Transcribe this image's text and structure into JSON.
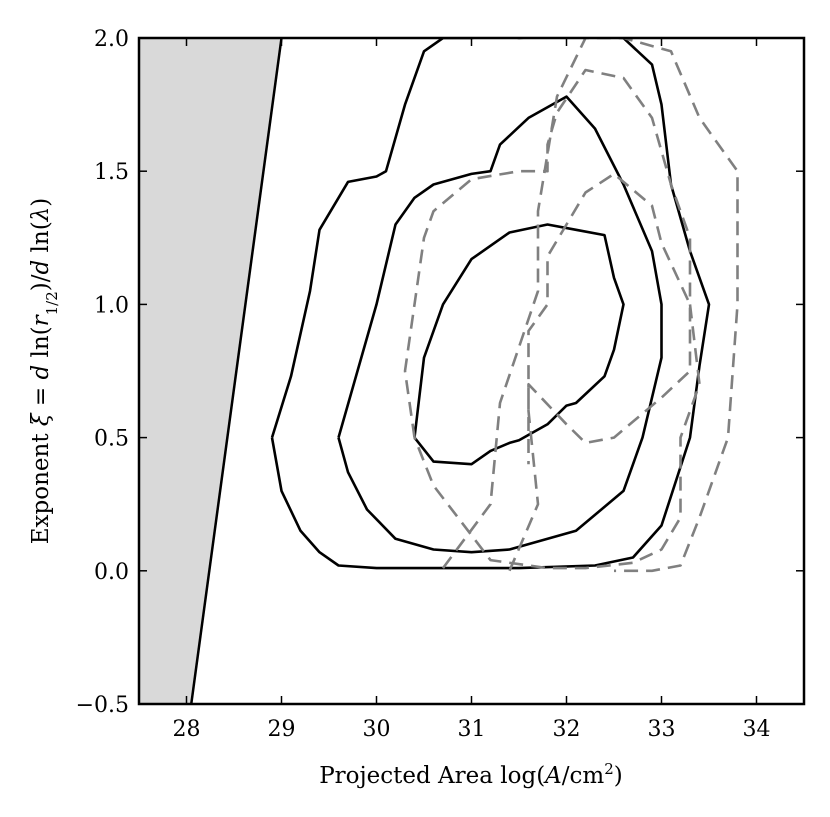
{
  "chart_data": {
    "type": "line",
    "xlabel": "Projected Area log(A/cm²)",
    "ylabel": "Exponent ξ = d ln(r_1/2)/d ln(λ)",
    "xlim": [
      27.5,
      34.5
    ],
    "ylim": [
      -0.5,
      2.0
    ],
    "xticks": [
      28,
      29,
      30,
      31,
      32,
      33,
      34
    ],
    "yticks": [
      -0.5,
      0.0,
      0.5,
      1.0,
      1.5,
      2.0
    ],
    "xtick_labels": [
      "28",
      "29",
      "30",
      "31",
      "32",
      "33",
      "34"
    ],
    "ytick_labels": [
      "−0.5",
      "0.0",
      "0.5",
      "1.0",
      "1.5",
      "2.0"
    ],
    "grid": false,
    "excluded_region": {
      "color": "#d9d9d9",
      "boundary": [
        [
          27.5,
          -0.5
        ],
        [
          28.05,
          -0.5
        ],
        [
          29.0,
          2.0
        ],
        [
          27.5,
          2.0
        ]
      ]
    },
    "series": [
      {
        "style": "solid",
        "color": "#000000",
        "points": [
          [
            30.4,
            0.5
          ],
          [
            30.5,
            0.8
          ],
          [
            30.7,
            1.0
          ],
          [
            31.0,
            1.17
          ],
          [
            31.4,
            1.27
          ],
          [
            31.8,
            1.3
          ],
          [
            32.1,
            1.28
          ],
          [
            32.4,
            1.26
          ],
          [
            32.5,
            1.1
          ],
          [
            32.6,
            1.0
          ],
          [
            32.5,
            0.83
          ],
          [
            32.4,
            0.73
          ],
          [
            32.1,
            0.63
          ],
          [
            32.0,
            0.62
          ],
          [
            31.8,
            0.55
          ],
          [
            31.5,
            0.49
          ],
          [
            31.4,
            0.48
          ],
          [
            31.2,
            0.45
          ],
          [
            31.0,
            0.4
          ],
          [
            30.6,
            0.41
          ],
          [
            30.4,
            0.5
          ]
        ]
      },
      {
        "style": "solid",
        "color": "#000000",
        "points": [
          [
            29.6,
            0.5
          ],
          [
            29.8,
            0.75
          ],
          [
            30.0,
            1.0
          ],
          [
            30.2,
            1.3
          ],
          [
            30.4,
            1.4
          ],
          [
            30.6,
            1.45
          ],
          [
            31.0,
            1.49
          ],
          [
            31.2,
            1.5
          ],
          [
            31.3,
            1.6
          ],
          [
            31.6,
            1.7
          ],
          [
            32.0,
            1.78
          ],
          [
            32.3,
            1.66
          ],
          [
            32.6,
            1.45
          ],
          [
            32.9,
            1.2
          ],
          [
            33.0,
            1.0
          ],
          [
            33.0,
            0.8
          ],
          [
            32.8,
            0.5
          ],
          [
            32.6,
            0.3
          ],
          [
            32.1,
            0.15
          ],
          [
            31.4,
            0.08
          ],
          [
            31.0,
            0.07
          ],
          [
            30.6,
            0.08
          ],
          [
            30.2,
            0.12
          ],
          [
            29.9,
            0.23
          ],
          [
            29.7,
            0.37
          ],
          [
            29.6,
            0.5
          ]
        ]
      },
      {
        "style": "solid",
        "color": "#000000",
        "points": [
          [
            28.9,
            0.5
          ],
          [
            29.1,
            0.73
          ],
          [
            29.3,
            1.05
          ],
          [
            29.4,
            1.28
          ],
          [
            29.7,
            1.46
          ],
          [
            30.0,
            1.48
          ],
          [
            30.1,
            1.5
          ],
          [
            30.3,
            1.75
          ],
          [
            30.5,
            1.95
          ],
          [
            30.7,
            2.0
          ],
          [
            31.0,
            2.0
          ],
          [
            31.3,
            2.01
          ],
          [
            31.5,
            2.0
          ],
          [
            32.0,
            2.01
          ],
          [
            32.6,
            2.0
          ],
          [
            32.9,
            1.9
          ],
          [
            33.0,
            1.75
          ],
          [
            33.1,
            1.45
          ],
          [
            33.3,
            1.2
          ],
          [
            33.5,
            1.0
          ],
          [
            33.4,
            0.77
          ],
          [
            33.3,
            0.5
          ],
          [
            33.0,
            0.17
          ],
          [
            32.7,
            0.05
          ],
          [
            32.3,
            0.02
          ],
          [
            31.5,
            0.01
          ],
          [
            30.5,
            0.01
          ],
          [
            30.0,
            0.01
          ],
          [
            29.6,
            0.02
          ],
          [
            29.4,
            0.07
          ],
          [
            29.2,
            0.15
          ],
          [
            29.0,
            0.3
          ],
          [
            28.9,
            0.5
          ]
        ]
      },
      {
        "style": "dashed",
        "color": "#808080",
        "points": [
          [
            31.4,
            0.0
          ],
          [
            31.7,
            0.25
          ],
          [
            31.6,
            0.6
          ],
          [
            31.6,
            0.9
          ],
          [
            31.8,
            1.0
          ],
          [
            31.8,
            1.18
          ],
          [
            32.0,
            1.3
          ],
          [
            32.2,
            1.42
          ],
          [
            32.5,
            1.49
          ],
          [
            32.9,
            1.37
          ],
          [
            33.0,
            1.23
          ],
          [
            33.3,
            1.0
          ],
          [
            33.3,
            0.75
          ],
          [
            33.0,
            0.65
          ],
          [
            32.5,
            0.5
          ],
          [
            32.2,
            0.48
          ],
          [
            32.0,
            0.55
          ],
          [
            31.6,
            0.7
          ],
          [
            31.6,
            0.4
          ]
        ]
      },
      {
        "style": "dashed",
        "color": "#808080",
        "points": [
          [
            30.4,
            0.5
          ],
          [
            30.3,
            0.75
          ],
          [
            30.4,
            1.0
          ],
          [
            30.5,
            1.25
          ],
          [
            30.6,
            1.35
          ],
          [
            31.0,
            1.47
          ],
          [
            31.5,
            1.5
          ],
          [
            31.8,
            1.5
          ],
          [
            31.8,
            1.6
          ],
          [
            31.9,
            1.72
          ],
          [
            32.2,
            1.88
          ],
          [
            32.6,
            1.85
          ],
          [
            32.9,
            1.7
          ],
          [
            33.1,
            1.45
          ],
          [
            33.3,
            1.25
          ],
          [
            33.3,
            1.0
          ],
          [
            33.4,
            0.7
          ],
          [
            33.2,
            0.5
          ],
          [
            33.2,
            0.2
          ],
          [
            33.0,
            0.08
          ],
          [
            32.7,
            0.03
          ],
          [
            32.2,
            0.01
          ],
          [
            31.8,
            0.01
          ],
          [
            31.2,
            0.04
          ],
          [
            30.9,
            0.18
          ],
          [
            30.6,
            0.32
          ],
          [
            30.4,
            0.5
          ]
        ]
      },
      {
        "style": "dashed",
        "color": "#808080",
        "points": [
          [
            30.7,
            0.01
          ],
          [
            31.2,
            0.25
          ],
          [
            31.3,
            0.63
          ],
          [
            31.7,
            1.05
          ],
          [
            31.7,
            1.35
          ],
          [
            31.9,
            1.78
          ],
          [
            32.2,
            2.0
          ],
          [
            32.6,
            2.0
          ],
          [
            33.1,
            1.95
          ],
          [
            33.4,
            1.7
          ],
          [
            33.8,
            1.5
          ],
          [
            33.8,
            1.0
          ],
          [
            33.7,
            0.5
          ],
          [
            33.4,
            0.2
          ],
          [
            33.2,
            0.02
          ],
          [
            32.9,
            0.0
          ],
          [
            32.5,
            0.0
          ]
        ]
      }
    ]
  }
}
